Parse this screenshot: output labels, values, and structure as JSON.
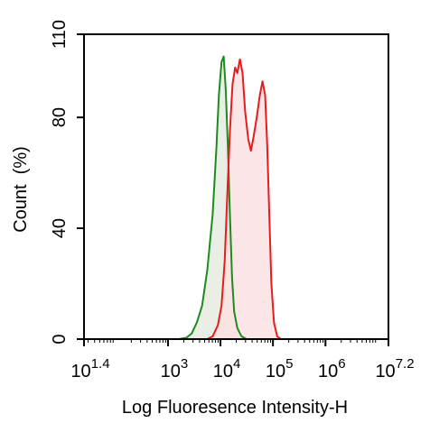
{
  "chart_data": {
    "type": "area",
    "xlabel": "Log Fluoresence Intensity-H",
    "ylabel": "Count  (%)",
    "x_scale": "log",
    "xlim": [
      1.4,
      7.2
    ],
    "ylim": [
      0,
      110
    ],
    "x_ticks": [
      {
        "exp": 1.4,
        "base": "10",
        "sup": "1.4"
      },
      {
        "exp": 3,
        "base": "10",
        "sup": "3"
      },
      {
        "exp": 4,
        "base": "10",
        "sup": "4"
      },
      {
        "exp": 5,
        "base": "10",
        "sup": "5"
      },
      {
        "exp": 6,
        "base": "10",
        "sup": "6"
      },
      {
        "exp": 7.2,
        "base": "10",
        "sup": "7.2"
      }
    ],
    "y_ticks": [
      0,
      40,
      80,
      110
    ],
    "grid": false,
    "series": [
      {
        "color": "#1f8a1f",
        "fill": "#e6ece0",
        "points": [
          [
            3.2,
            0
          ],
          [
            3.35,
            0.5
          ],
          [
            3.45,
            2
          ],
          [
            3.55,
            6
          ],
          [
            3.65,
            12
          ],
          [
            3.75,
            25
          ],
          [
            3.85,
            45
          ],
          [
            3.92,
            68
          ],
          [
            3.97,
            88
          ],
          [
            4.02,
            100
          ],
          [
            4.06,
            102
          ],
          [
            4.1,
            90
          ],
          [
            4.14,
            70
          ],
          [
            4.18,
            45
          ],
          [
            4.22,
            22
          ],
          [
            4.26,
            10
          ],
          [
            4.32,
            4
          ],
          [
            4.4,
            1
          ],
          [
            4.5,
            0
          ]
        ]
      },
      {
        "color": "#e81c1c",
        "fill": "#fbe1e3",
        "points": [
          [
            3.75,
            0
          ],
          [
            3.85,
            1
          ],
          [
            3.95,
            5
          ],
          [
            4.02,
            12
          ],
          [
            4.08,
            28
          ],
          [
            4.13,
            52
          ],
          [
            4.18,
            75
          ],
          [
            4.23,
            92
          ],
          [
            4.28,
            98
          ],
          [
            4.32,
            96
          ],
          [
            4.37,
            101
          ],
          [
            4.42,
            96
          ],
          [
            4.47,
            82
          ],
          [
            4.53,
            72
          ],
          [
            4.58,
            68
          ],
          [
            4.63,
            73
          ],
          [
            4.69,
            80
          ],
          [
            4.75,
            88
          ],
          [
            4.8,
            93
          ],
          [
            4.85,
            88
          ],
          [
            4.89,
            70
          ],
          [
            4.93,
            45
          ],
          [
            4.97,
            20
          ],
          [
            5.02,
            6
          ],
          [
            5.08,
            1
          ],
          [
            5.15,
            0
          ]
        ]
      }
    ]
  }
}
